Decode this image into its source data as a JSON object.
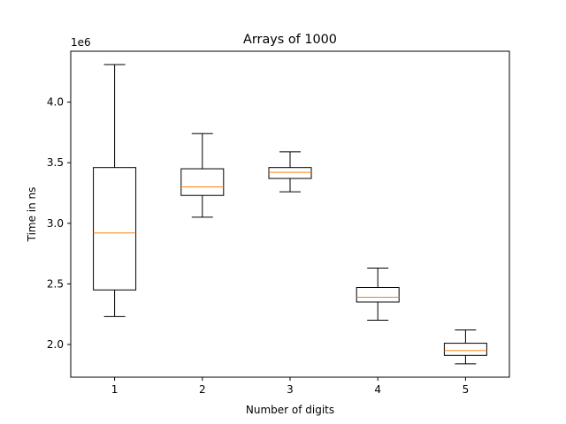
{
  "chart_data": {
    "type": "box",
    "title": "Arrays of 1000",
    "xlabel": "Number of digits",
    "ylabel": "Time in ns",
    "y_offset_label": "1e6",
    "y_scale": 1000000,
    "categories": [
      "1",
      "2",
      "3",
      "4",
      "5"
    ],
    "ylim": [
      1730000,
      4420000
    ],
    "yticks": [
      2000000,
      2500000,
      3000000,
      3500000,
      4000000
    ],
    "ytick_labels": [
      "2.0",
      "2.5",
      "3.0",
      "3.5",
      "4.0"
    ],
    "grid": false,
    "boxes": [
      {
        "category": "1",
        "whisker_low": 2230000,
        "q1": 2450000,
        "median": 2920000,
        "q3": 3460000,
        "whisker_high": 4310000
      },
      {
        "category": "2",
        "whisker_low": 3050000,
        "q1": 3230000,
        "median": 3300000,
        "q3": 3450000,
        "whisker_high": 3740000
      },
      {
        "category": "3",
        "whisker_low": 3260000,
        "q1": 3370000,
        "median": 3420000,
        "q3": 3460000,
        "whisker_high": 3590000
      },
      {
        "category": "4",
        "whisker_low": 2200000,
        "q1": 2350000,
        "median": 2390000,
        "q3": 2470000,
        "whisker_high": 2630000
      },
      {
        "category": "5",
        "whisker_low": 1840000,
        "q1": 1910000,
        "median": 1950000,
        "q3": 2010000,
        "whisker_high": 2120000
      }
    ],
    "colors": {
      "box": "#000000",
      "median": "#ff7f0e",
      "axis": "#000000"
    }
  }
}
